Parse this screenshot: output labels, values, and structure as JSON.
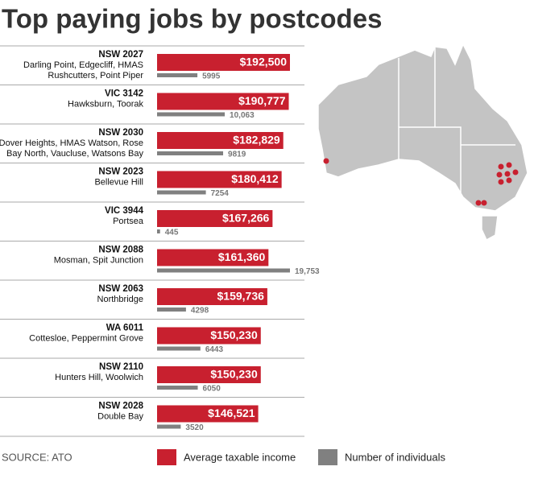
{
  "chart_data": {
    "type": "bar",
    "orientation": "horizontal",
    "title": "Top paying jobs by postcodes",
    "source": "SOURCE: ATO",
    "categories": [
      "NSW 2027",
      "VIC 3142",
      "NSW 2030",
      "NSW 2023",
      "VIC 3944",
      "NSW 2088",
      "NSW 2063",
      "WA 6011",
      "NSW 2110",
      "NSW 2028"
    ],
    "category_descriptions": [
      [
        "Darling Point, Edgecliff, HMAS",
        "Rushcutters, Point Piper"
      ],
      [
        "Hawksburn, Toorak"
      ],
      [
        "Dover Heights, HMAS Watson, Rose",
        "Bay North, Vaucluse, Watsons Bay"
      ],
      [
        "Bellevue Hill"
      ],
      [
        "Portsea"
      ],
      [
        "Mosman, Spit Junction"
      ],
      [
        "Northbridge"
      ],
      [
        "Cottesloe, Peppermint Grove"
      ],
      [
        "Hunters Hill, Woolwich"
      ],
      [
        "Double Bay"
      ]
    ],
    "series": [
      {
        "name": "Average taxable income",
        "color": "#c8202f",
        "values": [
          192500,
          190777,
          182829,
          180412,
          167266,
          161360,
          159736,
          150230,
          150230,
          146521
        ],
        "value_labels": [
          "$192,500",
          "$190,777",
          "$182,829",
          "$180,412",
          "$167,266",
          "$161,360",
          "$159,736",
          "$150,230",
          "$150,230",
          "$146,521"
        ]
      },
      {
        "name": "Number of individuals",
        "color": "#808080",
        "values": [
          5995,
          10063,
          9819,
          7254,
          445,
          19753,
          4298,
          6443,
          6050,
          3520
        ],
        "value_labels": [
          "5995",
          "10,063",
          "9819",
          "7254",
          "445",
          "19,753",
          "4298",
          "6443",
          "6050",
          "3520"
        ]
      }
    ]
  }
}
